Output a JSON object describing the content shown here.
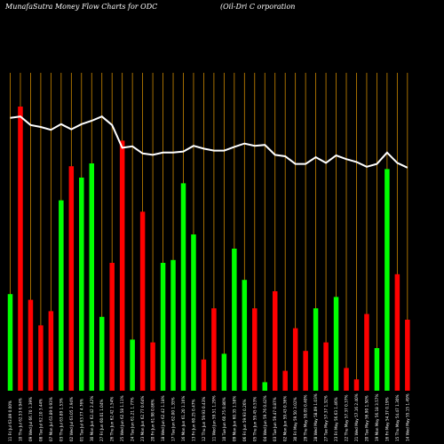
{
  "chart_data": {
    "type": "bar",
    "title": "MunafaSutra  Money Flow  Charts for ODC",
    "subtitle": "(Oil-Dri   C                              orporation",
    "colors": {
      "up": "#00ff00",
      "down": "#ff0000",
      "line": "#ffffff",
      "grid": "#cc8800",
      "background": "#000000"
    },
    "ylim": [
      0,
      100
    ],
    "categories": [
      "Fri 11 Jul 2025",
      "Thu 10 Jul 2025",
      "Wed 09 Jul 2025",
      "Tue 08 Jul 2025",
      "Mon 07 Jul 2025",
      "Thu 03 Jul 2025",
      "Wed 02 Jul 2025",
      "Tue 01 Jul 2025",
      "Mon 30 Jun 2025",
      "Fri 27 Jun 2025",
      "Thu 26 Jun 2025",
      "Wed 25 Jun 2025",
      "Tue 24 Jun 2025",
      "Mon 23 Jun 2025",
      "Fri 20 Jun 2025",
      "Wed 18 Jun 2025",
      "Tue 17 Jun 2025",
      "Mon 16 Jun 2025",
      "Fri 13 Jun 2025",
      "Thu 12 Jun 2025",
      "Wed 11 Jun 2025",
      "Tue 10 Jun 2025",
      "Mon 09 Jun 2025",
      "Fri 06 Jun 2025",
      "Thu 05 Jun 2025",
      "Wed 04 Jun 2025",
      "Tue 03 Jun 2025",
      "Mon 02 Jun 2025",
      "Fri 30 May 2025",
      "Thu 29 May 2025",
      "Wed 28 May 2025",
      "Tue 27 May 2025",
      "Fri 23 May 2025",
      "Thu 22 May 2025",
      "Wed 21 May 2025",
      "Tue 20 May 2025",
      "Mon 19 May 2025",
      "Fri 16 May 2025",
      "Thu 15 May 2025",
      "Wed 14 May 2025"
    ],
    "tick_labels": [
      "11 Fri Jul 63.89 0.00%",
      "10 Thu Jul 62.53 6.94%",
      "09 Wed Jul 66.70 1.39%",
      "08 Tue Jul 62.10 3.44%",
      "07 Mon Jul 63.89 0.93%",
      "03 Thu Jul 63.89 1.53%",
      "02 Wed Jul 63.05 2.94%",
      "01 Tue Jul 63.77 4.76%",
      "30 Mon Jun 62.42 2.42%",
      "27 Fri Jun 60.01 1.04%",
      "26 Thu Jun 62.42 1.54%",
      "25 Wed Jun 62.58 1.11%",
      "24 Tue Jun 61.21 1.77%",
      "23 Mon Jun 62.77 0.64%",
      "20 Fri Jun 61.98 0.86%",
      "18 Wed Jun 62.42 1.18%",
      "17 Tue Jun 62.00 1.35%",
      "16 Mon Jun 61.20 1.16%",
      "13 Fri Jun 60.25 0.47%",
      "12 Thu Jun 59.93 0.43%",
      "11 Wed Jun 59.51 1.29%",
      "10 Tue Jun 60.75 0.80%",
      "09 Mon Jun 60.35 1.58%",
      "06 Fri Jun 59.93 0.26%",
      "05 Thu Jun 59.45 0.53%",
      "04 Wed Jun 59.76 0.42%",
      "03 Tue Jun 59.47 0.87%",
      "02 Mon Jun 59.43 0.36%",
      "30 Fri May 59.50 3.02%",
      "29 Thu May 58.05 0.40%",
      "28 Wed May 58.09 1.03%",
      "27 Tue May 57.37 1.32%",
      "23 Fri May 56.63 1.46%",
      "22 Thu May 57.37 0.37%",
      "21 Wed May 57.16 2.40%",
      "20 Tue May 56.90 1.50%",
      "19 Mon May 56.18 3.57%",
      "16 Fri May 54.37 0.19%",
      "15 Thu May 54.47 1.30%",
      "14 Wed May 55.15 1.49%"
    ],
    "series": [
      {
        "values": [
          34,
          100,
          32,
          23,
          28,
          67,
          79,
          75,
          80,
          26,
          45,
          88,
          18,
          63,
          17,
          45,
          46,
          73,
          55,
          11,
          29,
          13,
          50,
          39,
          29,
          3,
          35,
          7,
          22,
          14,
          29,
          17,
          33,
          8,
          4,
          27,
          15,
          78,
          41,
          25
        ],
        "direction": [
          "up",
          "down",
          "down",
          "down",
          "down",
          "up",
          "down",
          "up",
          "up",
          "up",
          "down",
          "down",
          "up",
          "down",
          "down",
          "up",
          "up",
          "up",
          "up",
          "down",
          "down",
          "up",
          "up",
          "up",
          "down",
          "up",
          "down",
          "down",
          "down",
          "down",
          "up",
          "down",
          "up",
          "down",
          "down",
          "down",
          "up",
          "up",
          "down",
          "down"
        ]
      },
      {
        "values": [
          96,
          96.5,
          93.5,
          92.8,
          91.8,
          93.8,
          92,
          93.8,
          95,
          96.5,
          93.5,
          85.5,
          86,
          83.5,
          83,
          83.8,
          83.8,
          84.2,
          86.2,
          85.2,
          84.5,
          84.5,
          85.8,
          87,
          86.2,
          86.5,
          83,
          82.5,
          79.8,
          79.8,
          82.2,
          80.2,
          82.8,
          81.5,
          80.5,
          78.8,
          79.8,
          83.8,
          80.2,
          78.5
        ]
      }
    ]
  }
}
